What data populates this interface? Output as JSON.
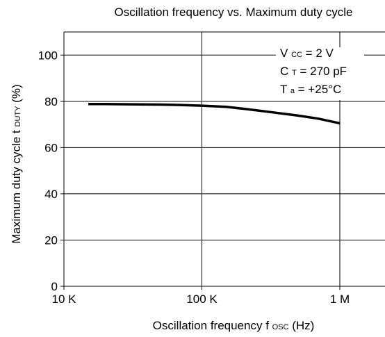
{
  "chart_data": {
    "type": "line",
    "title": "Oscillation frequency vs. Maximum duty cycle",
    "xlabel_main": "Oscillation frequency f",
    "xlabel_sub": "OSC",
    "xlabel_unit": "(Hz)",
    "ylabel_main": "Maximum duty cycle t",
    "ylabel_sub": "DUTY",
    "ylabel_unit": "(%)",
    "x_scale": "log",
    "xlim": [
      10000,
      1000000
    ],
    "ylim": [
      0,
      110
    ],
    "x_ticks": [
      {
        "value": 10000,
        "label": "10 K"
      },
      {
        "value": 100000,
        "label": "100 K"
      },
      {
        "value": 1000000,
        "label": "1 M"
      }
    ],
    "y_ticks": [
      {
        "value": 0,
        "label": "0"
      },
      {
        "value": 20,
        "label": "20"
      },
      {
        "value": 40,
        "label": "40"
      },
      {
        "value": 60,
        "label": "60"
      },
      {
        "value": 80,
        "label": "80"
      },
      {
        "value": 100,
        "label": "100"
      }
    ],
    "grid": true,
    "series": [
      {
        "x": [
          15000,
          20000,
          30000,
          50000,
          70000,
          100000,
          150000,
          200000,
          300000,
          500000,
          700000,
          1000000
        ],
        "y": [
          78.8,
          78.8,
          78.7,
          78.6,
          78.4,
          78.1,
          77.6,
          76.8,
          75.5,
          73.8,
          72.5,
          70.5
        ]
      }
    ],
    "annotations": [
      {
        "main": "V",
        "sub": "CC",
        "rest": " = 2 V"
      },
      {
        "main": "C",
        "sub": "T",
        "rest": " = 270 pF"
      },
      {
        "main": "T",
        "sub": "a",
        "rest": " = +25°C"
      }
    ],
    "colors": {
      "line": "#000000",
      "grid": "#000000",
      "axis": "#000000"
    }
  }
}
